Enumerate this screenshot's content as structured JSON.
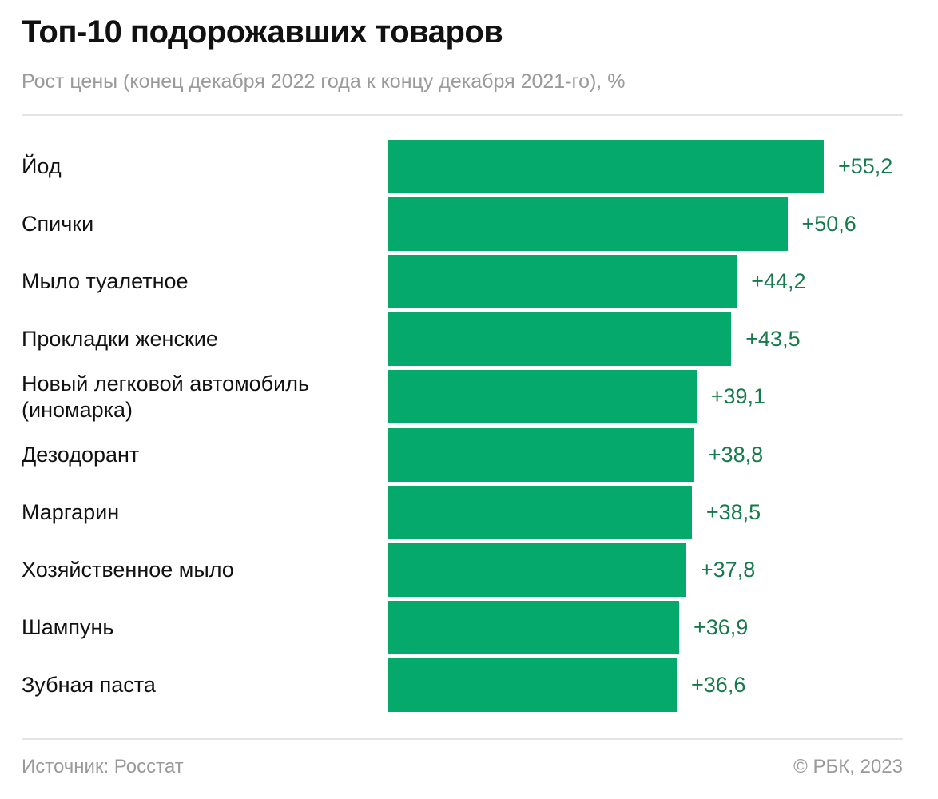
{
  "chart_data": {
    "type": "bar",
    "orientation": "horizontal",
    "title": "Топ-10 подорожавших товаров",
    "subtitle": "Рост цены (конец декабря 2022 года к концу декабря 2021-го), %",
    "categories": [
      "Йод",
      "Спички",
      "Мыло туалетное",
      "Прокладки женские",
      "Новый легковой автомобиль (иномарка)",
      "Дезодорант",
      "Маргарин",
      "Хозяйственное мыло",
      "Шампунь",
      "Зубная паста"
    ],
    "values": [
      55.2,
      50.6,
      44.2,
      43.5,
      39.1,
      38.8,
      38.5,
      37.8,
      36.9,
      36.6
    ],
    "value_labels": [
      "+55,2",
      "+50,6",
      "+44,2",
      "+43,5",
      "+39,1",
      "+38,8",
      "+38,5",
      "+37,8",
      "+36,9",
      "+36,6"
    ],
    "color": "#05a96b",
    "label_color": "#167a4c",
    "source": "Источник: Росстат",
    "credit": "© РБК, 2023"
  }
}
